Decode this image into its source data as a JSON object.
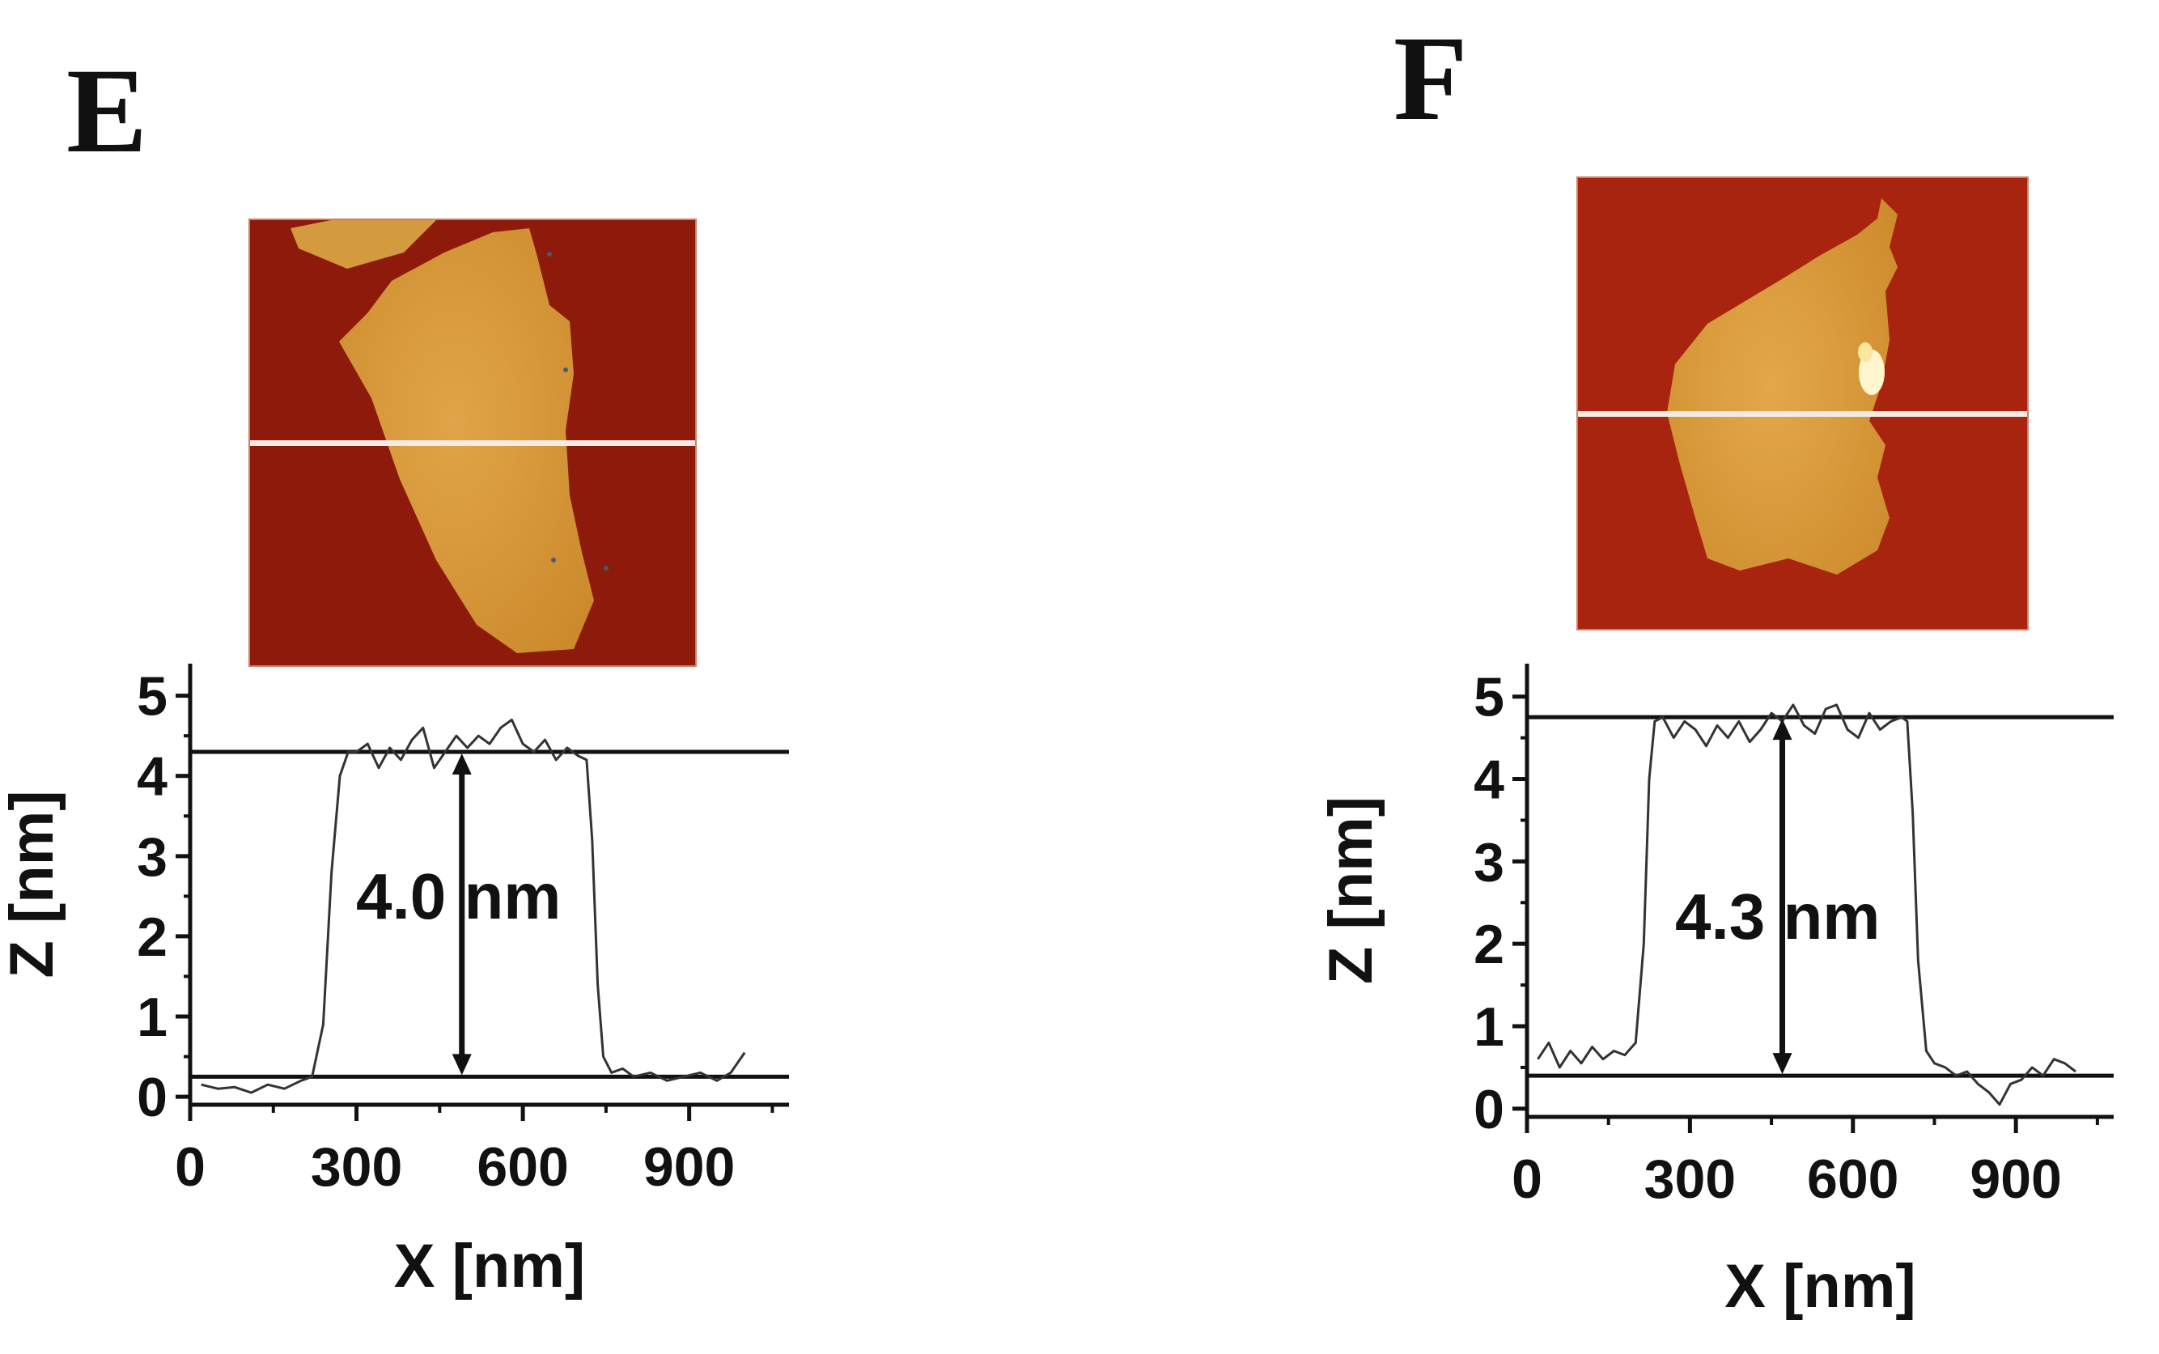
{
  "panels": [
    {
      "letter": "E",
      "afm_image_alt": "AFM height image of a flake (panel E)",
      "height_label": "4.0 nm",
      "chart_data": {
        "type": "line",
        "xlabel": "X [nm]",
        "ylabel": "Z [nm]",
        "xlim": [
          0,
          1080
        ],
        "ylim": [
          -0.1,
          5.4
        ],
        "xticks": [
          0,
          300,
          600,
          900
        ],
        "yticks": [
          0,
          1,
          2,
          3,
          4,
          5
        ],
        "x_minor_step": 150,
        "y_minor_step": 0.5,
        "baseline": 0.25,
        "top_level": 4.3,
        "arrow_x": 490,
        "annotation": "4.0 nm",
        "series": [
          {
            "name": "height profile",
            "x": [
              20,
              50,
              80,
              110,
              140,
              170,
              200,
              220,
              240,
              255,
              270,
              285,
              300,
              320,
              340,
              360,
              380,
              400,
              420,
              440,
              460,
              480,
              500,
              520,
              540,
              560,
              580,
              600,
              620,
              640,
              660,
              680,
              700,
              715,
              725,
              735,
              745,
              760,
              780,
              800,
              830,
              860,
              890,
              920,
              950,
              975,
              1000
            ],
            "y": [
              0.15,
              0.1,
              0.12,
              0.05,
              0.15,
              0.1,
              0.2,
              0.25,
              0.9,
              2.8,
              4.0,
              4.3,
              4.3,
              4.4,
              4.1,
              4.35,
              4.2,
              4.45,
              4.6,
              4.1,
              4.3,
              4.5,
              4.35,
              4.5,
              4.4,
              4.6,
              4.7,
              4.4,
              4.3,
              4.45,
              4.2,
              4.35,
              4.25,
              4.2,
              3.2,
              1.4,
              0.5,
              0.3,
              0.35,
              0.25,
              0.3,
              0.2,
              0.25,
              0.3,
              0.2,
              0.3,
              0.55
            ]
          }
        ]
      }
    },
    {
      "letter": "F",
      "afm_image_alt": "AFM height image of a flake (panel F)",
      "height_label": "4.3 nm",
      "chart_data": {
        "type": "line",
        "xlabel": "X [nm]",
        "ylabel": "Z [nm]",
        "xlim": [
          0,
          1080
        ],
        "ylim": [
          -0.1,
          5.4
        ],
        "xticks": [
          0,
          300,
          600,
          900
        ],
        "yticks": [
          0,
          1,
          2,
          3,
          4,
          5
        ],
        "x_minor_step": 150,
        "y_minor_step": 0.5,
        "baseline": 0.4,
        "top_level": 4.75,
        "arrow_x": 470,
        "annotation": "4.3 nm",
        "series": [
          {
            "name": "height profile",
            "x": [
              20,
              40,
              60,
              80,
              100,
              120,
              140,
              160,
              180,
              200,
              215,
              225,
              235,
              250,
              270,
              290,
              310,
              330,
              350,
              370,
              390,
              410,
              430,
              450,
              470,
              490,
              510,
              530,
              550,
              570,
              590,
              610,
              630,
              650,
              670,
              690,
              700,
              710,
              720,
              735,
              750,
              770,
              790,
              810,
              830,
              850,
              870,
              890,
              910,
              930,
              950,
              970,
              990,
              1010
            ],
            "y": [
              0.6,
              0.8,
              0.5,
              0.7,
              0.55,
              0.75,
              0.6,
              0.7,
              0.65,
              0.8,
              2.0,
              4.0,
              4.7,
              4.75,
              4.5,
              4.7,
              4.6,
              4.4,
              4.65,
              4.5,
              4.7,
              4.45,
              4.6,
              4.8,
              4.7,
              4.9,
              4.65,
              4.55,
              4.85,
              4.9,
              4.6,
              4.5,
              4.8,
              4.6,
              4.7,
              4.75,
              4.7,
              3.6,
              1.8,
              0.7,
              0.55,
              0.5,
              0.4,
              0.45,
              0.3,
              0.2,
              0.05,
              0.3,
              0.35,
              0.5,
              0.4,
              0.6,
              0.55,
              0.45
            ]
          }
        ]
      }
    }
  ]
}
